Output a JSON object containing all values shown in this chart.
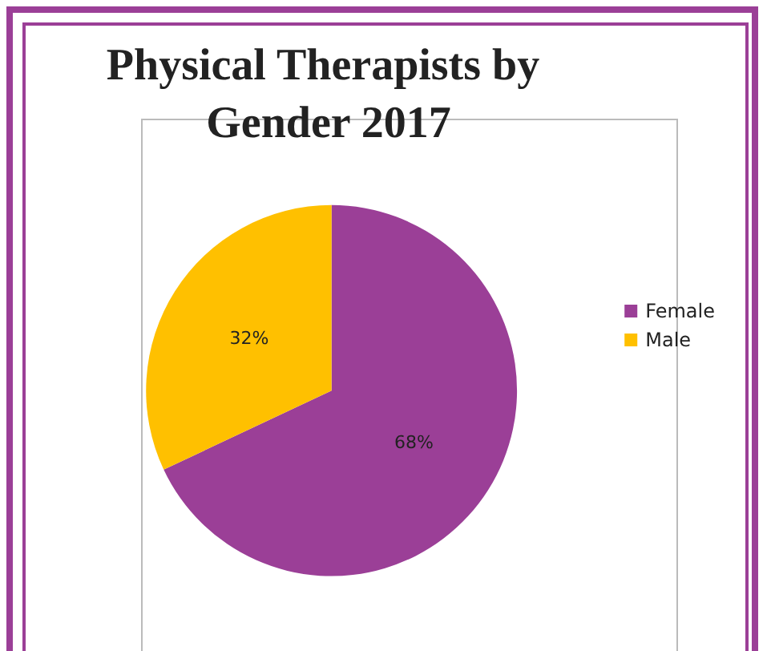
{
  "chart_data": {
    "type": "pie",
    "title": "Physical Therapists by Gender 2017",
    "categories": [
      "Female",
      "Male"
    ],
    "values": [
      68,
      32
    ],
    "colors": [
      "#9b3f97",
      "#ffc000"
    ],
    "value_labels": [
      "68%",
      "32%"
    ],
    "legend": "right"
  }
}
